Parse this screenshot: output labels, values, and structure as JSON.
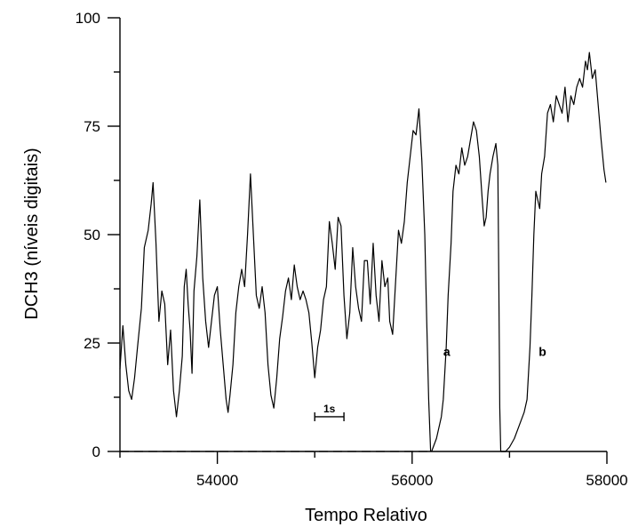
{
  "chart_data": {
    "type": "line",
    "xlabel": "Tempo Relativo",
    "ylabel": "DCH3  (níveis digitais)",
    "xlim": [
      53000,
      58000
    ],
    "ylim": [
      0,
      100
    ],
    "xticks": [
      54000,
      56000,
      58000
    ],
    "xtick_labels": [
      "54000",
      "56000",
      "58000"
    ],
    "yticks": [
      0,
      25,
      50,
      75,
      100
    ],
    "ytick_labels": [
      "0",
      "25",
      "50",
      "75",
      "100"
    ],
    "grid": false,
    "annotations": {
      "a": {
        "label": "a",
        "x": 56320,
        "y": 22
      },
      "b": {
        "label": "b",
        "x": 57300,
        "y": 22
      },
      "scale_bar": {
        "label": "1s",
        "x_start": 55000,
        "x_end": 55300,
        "y": 8
      }
    },
    "series": [
      {
        "values": [
          [
            53000,
            19
          ],
          [
            53030,
            29
          ],
          [
            53060,
            20
          ],
          [
            53090,
            14
          ],
          [
            53120,
            12
          ],
          [
            53150,
            17
          ],
          [
            53180,
            24
          ],
          [
            53220,
            33
          ],
          [
            53250,
            47
          ],
          [
            53290,
            51
          ],
          [
            53320,
            57
          ],
          [
            53340,
            62
          ],
          [
            53370,
            48
          ],
          [
            53400,
            30
          ],
          [
            53430,
            37
          ],
          [
            53460,
            34
          ],
          [
            53490,
            20
          ],
          [
            53520,
            28
          ],
          [
            53550,
            14
          ],
          [
            53580,
            8
          ],
          [
            53610,
            14
          ],
          [
            53640,
            22
          ],
          [
            53660,
            38
          ],
          [
            53680,
            42
          ],
          [
            53700,
            34
          ],
          [
            53720,
            28
          ],
          [
            53740,
            18
          ],
          [
            53760,
            37
          ],
          [
            53790,
            45
          ],
          [
            53820,
            58
          ],
          [
            53850,
            40
          ],
          [
            53880,
            30
          ],
          [
            53910,
            24
          ],
          [
            53940,
            30
          ],
          [
            53970,
            36
          ],
          [
            54000,
            38
          ],
          [
            54030,
            28
          ],
          [
            54060,
            20
          ],
          [
            54090,
            12
          ],
          [
            54110,
            9
          ],
          [
            54130,
            13
          ],
          [
            54160,
            20
          ],
          [
            54190,
            32
          ],
          [
            54220,
            38
          ],
          [
            54250,
            42
          ],
          [
            54280,
            38
          ],
          [
            54310,
            50
          ],
          [
            54340,
            64
          ],
          [
            54370,
            50
          ],
          [
            54400,
            36
          ],
          [
            54430,
            33
          ],
          [
            54460,
            38
          ],
          [
            54490,
            32
          ],
          [
            54520,
            20
          ],
          [
            54550,
            13
          ],
          [
            54580,
            10
          ],
          [
            54610,
            17
          ],
          [
            54640,
            26
          ],
          [
            54670,
            31
          ],
          [
            54700,
            37
          ],
          [
            54730,
            40
          ],
          [
            54760,
            35
          ],
          [
            54790,
            43
          ],
          [
            54820,
            38
          ],
          [
            54850,
            35
          ],
          [
            54880,
            37
          ],
          [
            54910,
            35
          ],
          [
            54940,
            32
          ],
          [
            54970,
            25
          ],
          [
            55000,
            17
          ],
          [
            55030,
            24
          ],
          [
            55060,
            28
          ],
          [
            55090,
            35
          ],
          [
            55120,
            38
          ],
          [
            55150,
            53
          ],
          [
            55180,
            48
          ],
          [
            55210,
            42
          ],
          [
            55240,
            54
          ],
          [
            55270,
            52
          ],
          [
            55300,
            36
          ],
          [
            55330,
            26
          ],
          [
            55360,
            32
          ],
          [
            55390,
            47
          ],
          [
            55420,
            38
          ],
          [
            55450,
            33
          ],
          [
            55480,
            30
          ],
          [
            55510,
            44
          ],
          [
            55540,
            44
          ],
          [
            55570,
            34
          ],
          [
            55600,
            48
          ],
          [
            55630,
            36
          ],
          [
            55660,
            30
          ],
          [
            55690,
            44
          ],
          [
            55720,
            38
          ],
          [
            55750,
            40
          ],
          [
            55770,
            30
          ],
          [
            55800,
            27
          ],
          [
            55830,
            39
          ],
          [
            55860,
            51
          ],
          [
            55890,
            48
          ],
          [
            55920,
            53
          ],
          [
            55950,
            62
          ],
          [
            55980,
            68
          ],
          [
            56010,
            74
          ],
          [
            56040,
            73
          ],
          [
            56070,
            79
          ],
          [
            56100,
            67
          ],
          [
            56130,
            50
          ],
          [
            56150,
            30
          ],
          [
            56170,
            12
          ],
          [
            56180,
            6
          ],
          [
            56190,
            0
          ]
        ]
      },
      {
        "values": [
          [
            56200,
            0
          ],
          [
            56250,
            3
          ],
          [
            56300,
            8
          ],
          [
            56320,
            12
          ],
          [
            56350,
            24
          ],
          [
            56370,
            36
          ],
          [
            56400,
            48
          ],
          [
            56420,
            60
          ],
          [
            56450,
            66
          ],
          [
            56480,
            64
          ],
          [
            56510,
            70
          ],
          [
            56540,
            66
          ],
          [
            56570,
            68
          ],
          [
            56600,
            72
          ],
          [
            56630,
            76
          ],
          [
            56660,
            74
          ],
          [
            56690,
            68
          ],
          [
            56720,
            58
          ],
          [
            56740,
            52
          ],
          [
            56760,
            54
          ],
          [
            56780,
            60
          ],
          [
            56800,
            64
          ],
          [
            56830,
            68
          ],
          [
            56860,
            71
          ],
          [
            56880,
            66
          ],
          [
            56890,
            40
          ],
          [
            56900,
            10
          ],
          [
            56910,
            0
          ]
        ]
      },
      {
        "values": [
          [
            56910,
            0
          ],
          [
            56960,
            0
          ],
          [
            57000,
            1
          ],
          [
            57050,
            3
          ],
          [
            57100,
            6
          ],
          [
            57150,
            9
          ],
          [
            57180,
            12
          ],
          [
            57210,
            24
          ],
          [
            57230,
            36
          ],
          [
            57250,
            50
          ],
          [
            57270,
            60
          ],
          [
            57290,
            58
          ],
          [
            57310,
            56
          ],
          [
            57330,
            64
          ],
          [
            57360,
            68
          ],
          [
            57390,
            78
          ],
          [
            57420,
            80
          ],
          [
            57450,
            76
          ],
          [
            57480,
            82
          ],
          [
            57510,
            80
          ],
          [
            57540,
            78
          ],
          [
            57570,
            84
          ],
          [
            57600,
            76
          ],
          [
            57630,
            82
          ],
          [
            57660,
            80
          ],
          [
            57690,
            84
          ],
          [
            57720,
            86
          ],
          [
            57750,
            84
          ],
          [
            57780,
            90
          ],
          [
            57800,
            88
          ],
          [
            57820,
            92
          ],
          [
            57850,
            86
          ],
          [
            57880,
            88
          ],
          [
            57910,
            80
          ],
          [
            57940,
            72
          ],
          [
            57970,
            65
          ],
          [
            57990,
            62
          ]
        ]
      }
    ],
    "baseline": {
      "y": 0,
      "segments": [
        [
          53000,
          56190
        ],
        [
          56910,
          56960
        ]
      ]
    }
  }
}
